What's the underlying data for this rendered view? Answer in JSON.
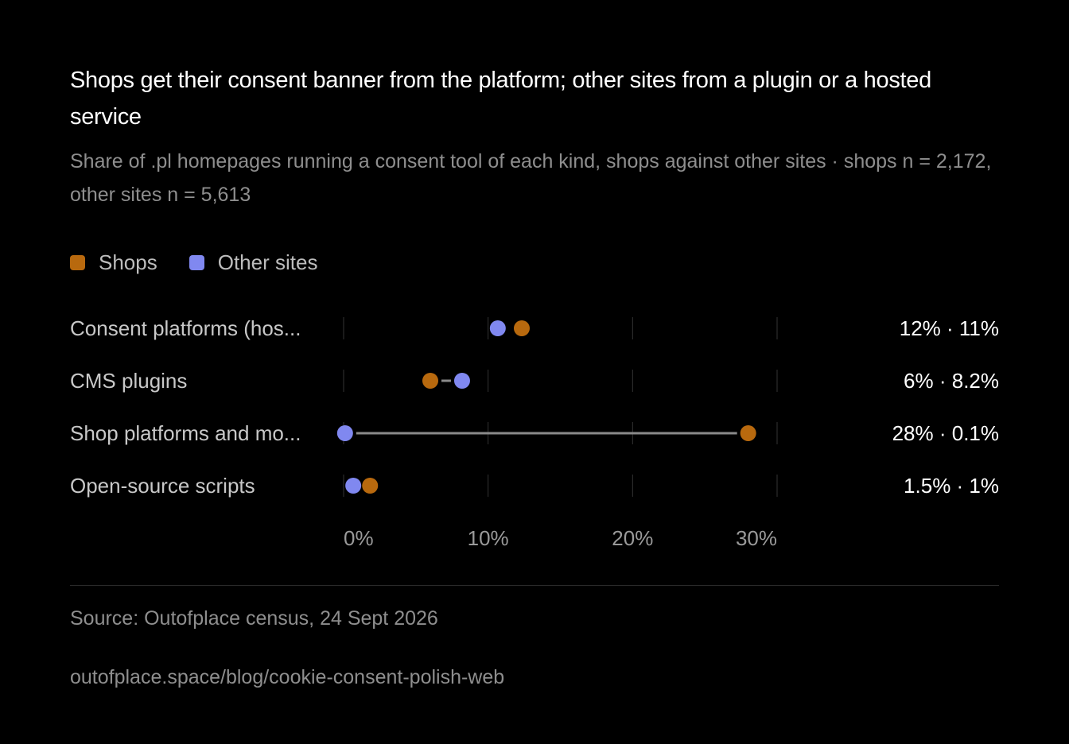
{
  "title": "Shops get their consent banner from the platform; other sites from a plugin or a hosted service",
  "subtitle": "Share of .pl homepages running a consent tool of each kind, shops against other sites · shops n = 2,172, other sites n = 5,613",
  "source": "Source: Outofplace census, 24 Sept 2026",
  "link": "outofplace.space/blog/cookie-consent-polish-web",
  "colors": {
    "shops": "#b8690e",
    "other": "#8088f0",
    "connector": "#8a8a8a",
    "grid": "#333333",
    "label": "#c8c8c8",
    "value": "#ffffff",
    "tick": "#9a9a9a"
  },
  "chart_data": {
    "type": "dot-plot",
    "categories": [
      "Consent platforms (hos...",
      "CMS plugins",
      "Shop platforms and mo...",
      "Open-source scripts"
    ],
    "series": [
      {
        "name": "Shops",
        "values": [
          12,
          6,
          28,
          1.5
        ]
      },
      {
        "name": "Other sites",
        "values": [
          11,
          8.2,
          0.1,
          1
        ]
      }
    ],
    "value_labels": [
      "12% · 11%",
      "6% · 8.2%",
      "28% · 0.1%",
      "1.5% · 1%"
    ],
    "x_ticks": [
      0,
      10,
      20,
      30
    ],
    "x_tick_labels": [
      "0%",
      "10%",
      "20%",
      "30%"
    ],
    "xlim": [
      0,
      30
    ],
    "legend": "top-left",
    "grid": true
  }
}
